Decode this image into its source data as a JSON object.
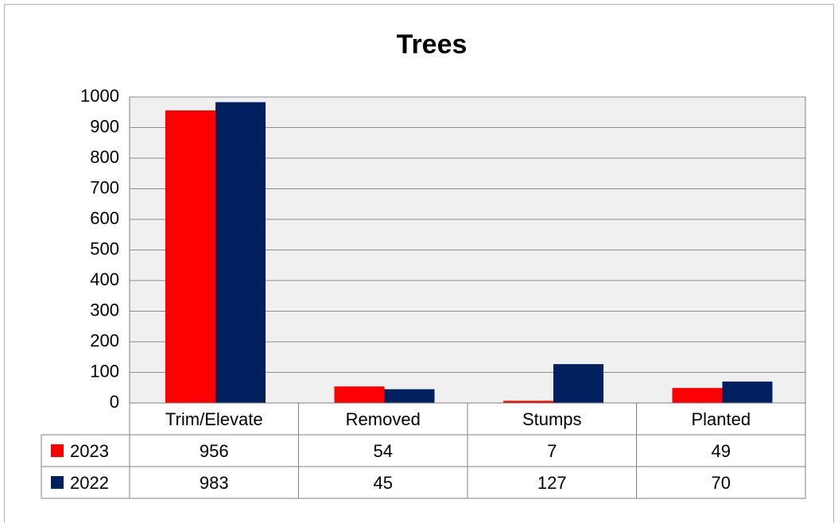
{
  "chart_data": {
    "type": "bar",
    "title": "Trees",
    "categories": [
      "Trim/Elevate",
      "Removed",
      "Stumps",
      "Planted"
    ],
    "series": [
      {
        "name": "2023",
        "color": "#ff0000",
        "values": [
          956,
          54,
          7,
          49
        ]
      },
      {
        "name": "2022",
        "color": "#002060",
        "values": [
          983,
          45,
          127,
          70
        ]
      }
    ],
    "ylim": [
      0,
      1000
    ],
    "yticks": [
      0,
      100,
      200,
      300,
      400,
      500,
      600,
      700,
      800,
      900,
      1000
    ],
    "grid": true,
    "data_table": true
  }
}
